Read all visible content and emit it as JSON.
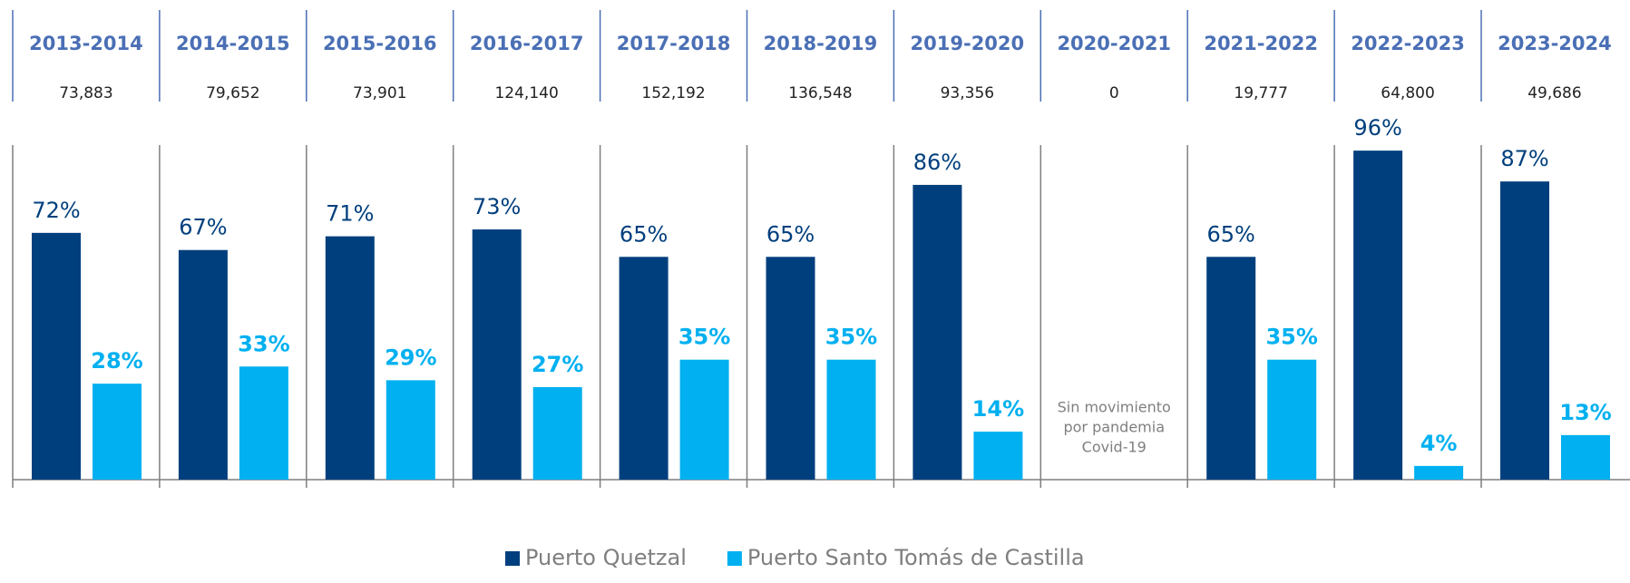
{
  "chart_data": {
    "type": "bar",
    "categories": [
      "2013-2014",
      "2014-2015",
      "2015-2016",
      "2016-2017",
      "2017-2018",
      "2018-2019",
      "2019-2020",
      "2020-2021",
      "2021-2022",
      "2022-2023",
      "2023-2024"
    ],
    "totals": [
      "73,883",
      "79,652",
      "73,901",
      "124,140",
      "152,192",
      "136,548",
      "93,356",
      "0",
      "19,777",
      "64,800",
      "49,686"
    ],
    "series": [
      {
        "name": "Puerto Quetzal",
        "color": "#003f7d",
        "values": [
          72,
          67,
          71,
          73,
          65,
          65,
          86,
          null,
          65,
          96,
          87
        ],
        "value_labels": [
          "72%",
          "67%",
          "71%",
          "73%",
          "65%",
          "65%",
          "86%",
          null,
          "65%",
          "96%",
          "87%"
        ]
      },
      {
        "name": "Puerto Santo Tomás de Castilla",
        "color": "#00b0f0",
        "values": [
          28,
          33,
          29,
          27,
          35,
          35,
          14,
          null,
          35,
          4,
          13
        ],
        "value_labels": [
          "28%",
          "33%",
          "29%",
          "27%",
          "35%",
          "35%",
          "14%",
          null,
          "35%",
          "4%",
          "13%"
        ]
      }
    ],
    "annotation": {
      "category_index": 7,
      "lines": [
        "Sin movimiento",
        "por pandemia",
        "Covid-19"
      ]
    },
    "ylim": [
      0,
      100
    ]
  }
}
